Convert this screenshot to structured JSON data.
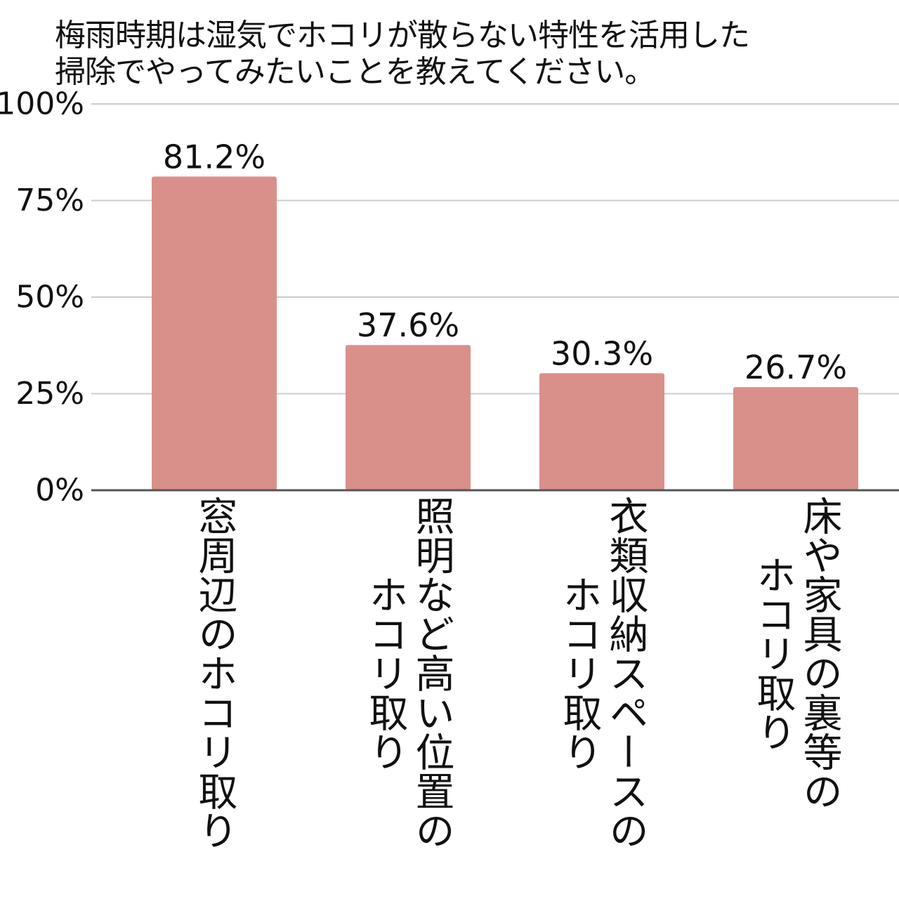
{
  "chart_data": {
    "type": "bar",
    "title": "梅雨時期は湿気でホコリが散らない特性を活用した掃除でやってみたいことを教えてください。",
    "title_lines": [
      "梅雨時期は湿気でホコリが散らない特性を活用した",
      "掃除でやってみたいことを教えてください。"
    ],
    "categories": [
      "窓周辺のホコリ取り",
      "照明など高い位置のホコリ取り",
      "衣類収納スペースのホコリ取り",
      "床や家具の裏等のホコリ取り"
    ],
    "category_lines": [
      [
        "窓周辺のホコリ取り"
      ],
      [
        "照明など高い位置の",
        "ホコリ取り"
      ],
      [
        "衣類収納スペースの",
        "ホコリ取り"
      ],
      [
        "床や家具の裏等の",
        "ホコリ取り"
      ]
    ],
    "values": [
      81.2,
      37.6,
      30.3,
      26.7
    ],
    "value_labels": [
      "81.2%",
      "37.6%",
      "30.3%",
      "26.7%"
    ],
    "ylim": [
      0,
      100
    ],
    "yticks": [
      0,
      25,
      50,
      75,
      100
    ],
    "ytick_labels": [
      "0%",
      "25%",
      "50%",
      "75%",
      "100%"
    ],
    "xlabel": "",
    "ylabel": "",
    "grid": true,
    "legend": "none",
    "colors": {
      "bar": "#d9908b",
      "grid": "#cccccc",
      "axis": "#555555"
    }
  }
}
